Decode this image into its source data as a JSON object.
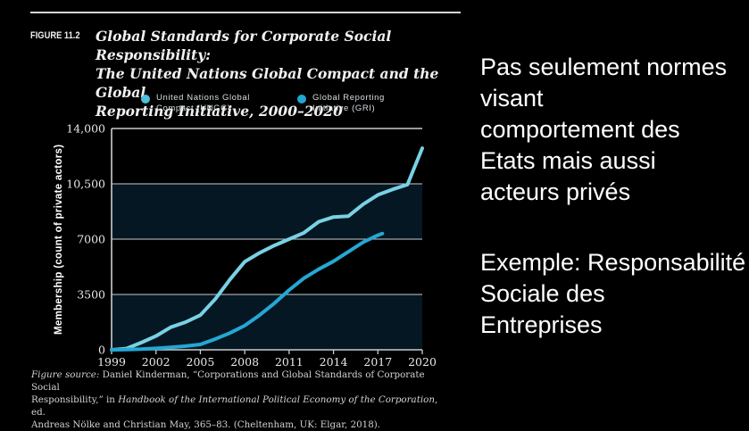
{
  "figure": {
    "label": "FIGURE 11.2",
    "title_lines": [
      "Global Standards for Corporate Social Responsibility:",
      "The United Nations Global Compact and the Global",
      "Reporting Initiative, 2000–2020"
    ],
    "source": {
      "l1_italic": "Figure source:",
      "l1_rest": " Daniel Kinderman, “Corporations and Global Standards of Corporate Social",
      "l2_pre": "Responsibility,” in ",
      "l2_italic": "Handbook of the International Political Economy of the Corporation",
      "l2_post": ", ed.",
      "l3": "Andreas Nölke and Christian May, 365–83. (Cheltenham, UK: Elgar, 2018)."
    }
  },
  "notes": {
    "para1": [
      "Pas seulement normes",
      "visant",
      "comportement des",
      "Etats mais aussi",
      "acteurs privés"
    ],
    "para2": [
      "Exemple: Responsabilité",
      "Sociale des",
      "Entreprises"
    ]
  },
  "chart_data": {
    "type": "line",
    "title": "Global Standards for Corporate Social Responsibility: The United Nations Global Compact and the Global Reporting Initiative, 2000–2020",
    "xlabel": "",
    "ylabel": "Membership (count of private actors)",
    "xlim": [
      1999,
      2020
    ],
    "ylim": [
      0,
      14000
    ],
    "xticks": [
      1999,
      2002,
      2005,
      2008,
      2011,
      2014,
      2017,
      2020
    ],
    "yticks": [
      0,
      3500,
      7000,
      10500,
      14000
    ],
    "ytick_labels": [
      "0",
      "3500",
      "7000",
      "10,500",
      "14,000"
    ],
    "grid": "horizontal gridlines at 3500/7000/10500, alternating dark-navy bands",
    "legend_position": "top",
    "colors": {
      "band": "#051722",
      "gridline": "#c9cdd0",
      "axis": "#c9cdd0",
      "tick_text": "#e8e8e8"
    },
    "series": [
      {
        "name": "United Nations Global Compact (UNGC)",
        "legend_lines": [
          "United Nations Global",
          "Compact (UNGC)"
        ],
        "color": "#79d1e4",
        "dot_color": "#4cc0dc",
        "points": [
          [
            1999,
            0
          ],
          [
            2000,
            80
          ],
          [
            2001,
            450
          ],
          [
            2002,
            870
          ],
          [
            2003,
            1430
          ],
          [
            2004,
            1750
          ],
          [
            2005,
            2190
          ],
          [
            2006,
            3200
          ],
          [
            2007,
            4450
          ],
          [
            2008,
            5570
          ],
          [
            2009,
            6130
          ],
          [
            2010,
            6600
          ],
          [
            2011,
            7000
          ],
          [
            2012,
            7400
          ],
          [
            2013,
            8100
          ],
          [
            2014,
            8400
          ],
          [
            2015,
            8450
          ],
          [
            2016,
            9200
          ],
          [
            2017,
            9800
          ],
          [
            2018,
            10150
          ],
          [
            2019,
            10450
          ],
          [
            2020,
            12750
          ]
        ]
      },
      {
        "name": "Global Reporting Initiative (GRI)",
        "legend_lines": [
          "Global Reporting",
          "Initiative (GRI)"
        ],
        "color": "#25a7d4",
        "dot_color": "#21a8d2",
        "points": [
          [
            1999,
            0
          ],
          [
            2000,
            10
          ],
          [
            2001,
            40
          ],
          [
            2002,
            90
          ],
          [
            2003,
            150
          ],
          [
            2004,
            230
          ],
          [
            2005,
            340
          ],
          [
            2006,
            680
          ],
          [
            2007,
            1060
          ],
          [
            2008,
            1530
          ],
          [
            2009,
            2190
          ],
          [
            2010,
            2940
          ],
          [
            2011,
            3780
          ],
          [
            2012,
            4530
          ],
          [
            2013,
            5100
          ],
          [
            2014,
            5600
          ],
          [
            2015,
            6200
          ],
          [
            2016,
            6800
          ],
          [
            2017,
            7250
          ],
          [
            2017.3,
            7350
          ]
        ]
      }
    ]
  }
}
